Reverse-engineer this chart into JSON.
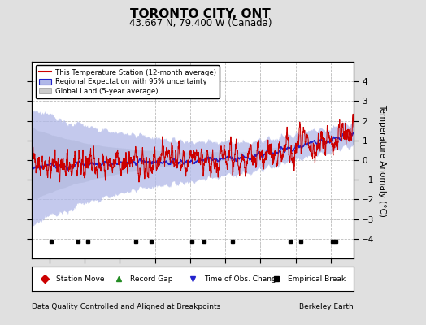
{
  "title": "TORONTO CITY, ONT",
  "subtitle": "43.667 N, 79.400 W (Canada)",
  "ylabel": "Temperature Anomaly (°C)",
  "xlabel_left": "Data Quality Controlled and Aligned at Breakpoints",
  "xlabel_right": "Berkeley Earth",
  "year_start": 1830,
  "year_end": 2013,
  "ylim": [
    -5,
    5
  ],
  "yticks": [
    -4,
    -3,
    -2,
    -1,
    0,
    1,
    2,
    3,
    4
  ],
  "xticks": [
    1840,
    1860,
    1880,
    1900,
    1920,
    1940,
    1960,
    1980,
    2000
  ],
  "bg_color": "#e0e0e0",
  "plot_bg_color": "#ffffff",
  "grid_color": "#bbbbbb",
  "empirical_break_years": [
    1841,
    1856,
    1862,
    1889,
    1898,
    1921,
    1928,
    1944,
    1977,
    1983,
    2001,
    2003
  ],
  "red_line_color": "#cc0000",
  "blue_line_color": "#2222cc",
  "blue_fill_color": "#b0b8e8",
  "gray_fill_color": "#cccccc",
  "seed": 137
}
